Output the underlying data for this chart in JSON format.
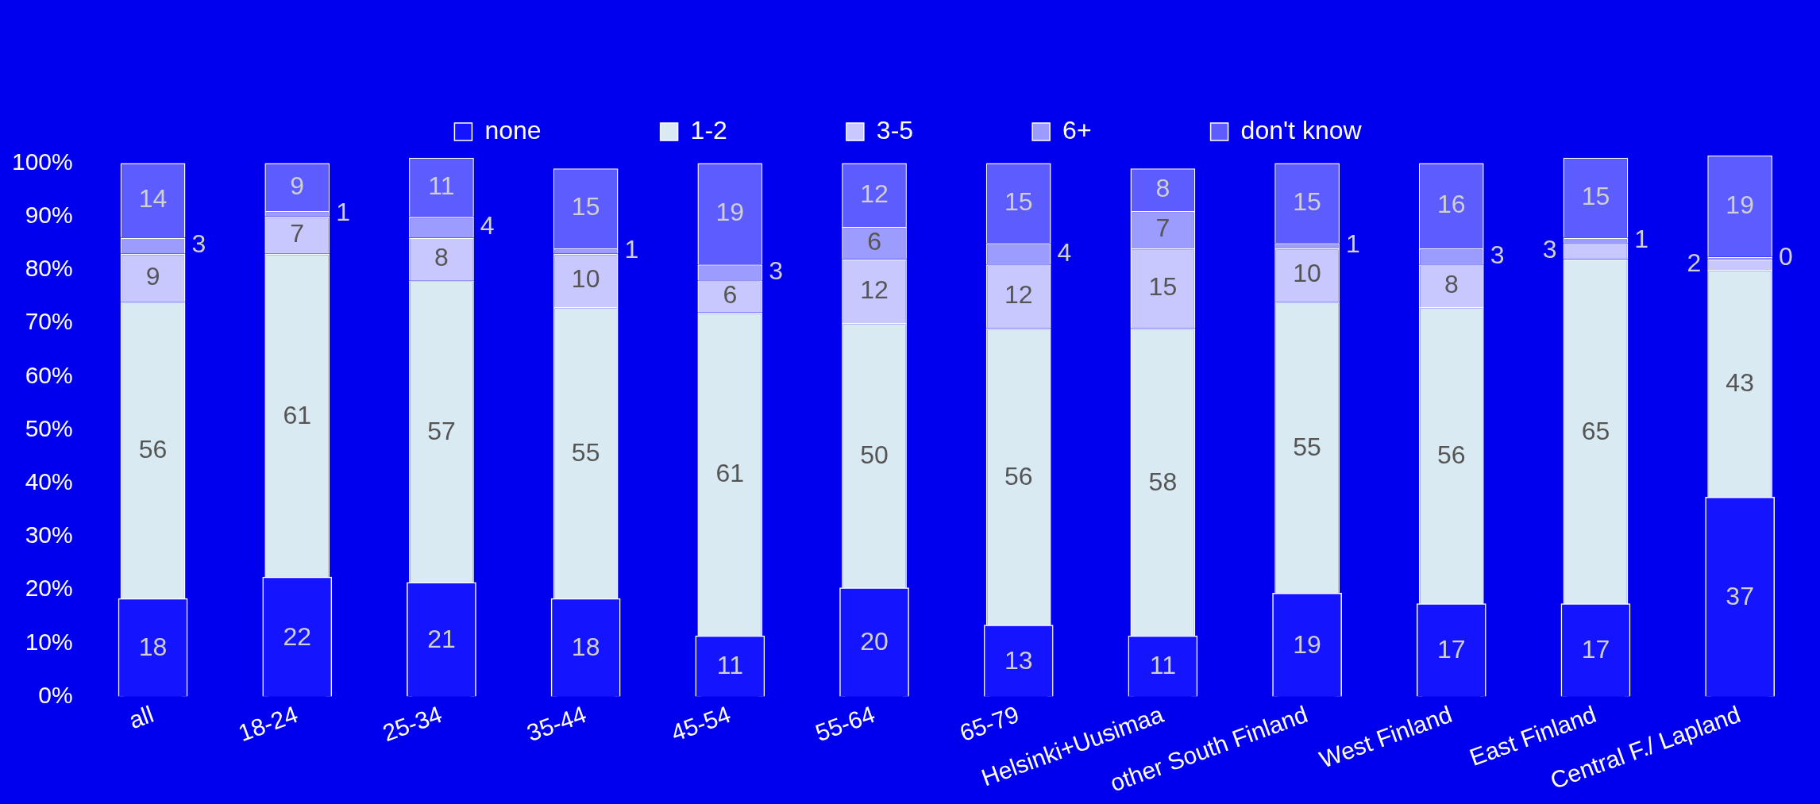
{
  "chart_data": {
    "type": "bar",
    "stacked": true,
    "data_labels": true,
    "legend": "top",
    "grid": false,
    "categories": [
      "all",
      "18-24",
      "25-34",
      "35-44",
      "45-54",
      "55-64",
      "65-79",
      "Helsinki+Uusimaa",
      "other South Finland",
      "West Finland",
      "East Finland",
      "Central F./ Lapland"
    ],
    "series": [
      {
        "name": "none",
        "color": "#1414ff",
        "values": [
          18,
          22,
          21,
          18,
          11,
          20,
          13,
          11,
          19,
          17,
          17,
          37
        ]
      },
      {
        "name": "1-2",
        "color": "#daeaf2",
        "values": [
          56,
          61,
          57,
          55,
          61,
          50,
          56,
          58,
          55,
          56,
          65,
          43
        ]
      },
      {
        "name": "3-5",
        "color": "#c8c8ff",
        "values": [
          9,
          7,
          8,
          10,
          6,
          12,
          12,
          15,
          10,
          8,
          3,
          2
        ]
      },
      {
        "name": "6+",
        "color": "#9c9cff",
        "values": [
          3,
          1,
          4,
          1,
          3,
          6,
          4,
          7,
          1,
          3,
          1,
          0.4
        ],
        "value_labels": [
          "3",
          "1",
          "4",
          "1",
          "3",
          "6",
          "4",
          "7",
          "1",
          "3",
          "1",
          "0"
        ]
      },
      {
        "name": "don't know",
        "color": "#5c5cff",
        "values": [
          14,
          9,
          11,
          15,
          19,
          12,
          15,
          8,
          15,
          16,
          15,
          19
        ]
      }
    ],
    "ylim": [
      0,
      102
    ],
    "yticks": [
      {
        "value": 0,
        "label": "0%"
      },
      {
        "value": 10,
        "label": "10%"
      },
      {
        "value": 20,
        "label": "20%"
      },
      {
        "value": 30,
        "label": "30%"
      },
      {
        "value": 40,
        "label": "40%"
      },
      {
        "value": 50,
        "label": "50%"
      },
      {
        "value": 60,
        "label": "60%"
      },
      {
        "value": 70,
        "label": "70%"
      },
      {
        "value": 80,
        "label": "80%"
      },
      {
        "value": 90,
        "label": "90%"
      },
      {
        "value": 100,
        "label": "100%"
      }
    ]
  }
}
